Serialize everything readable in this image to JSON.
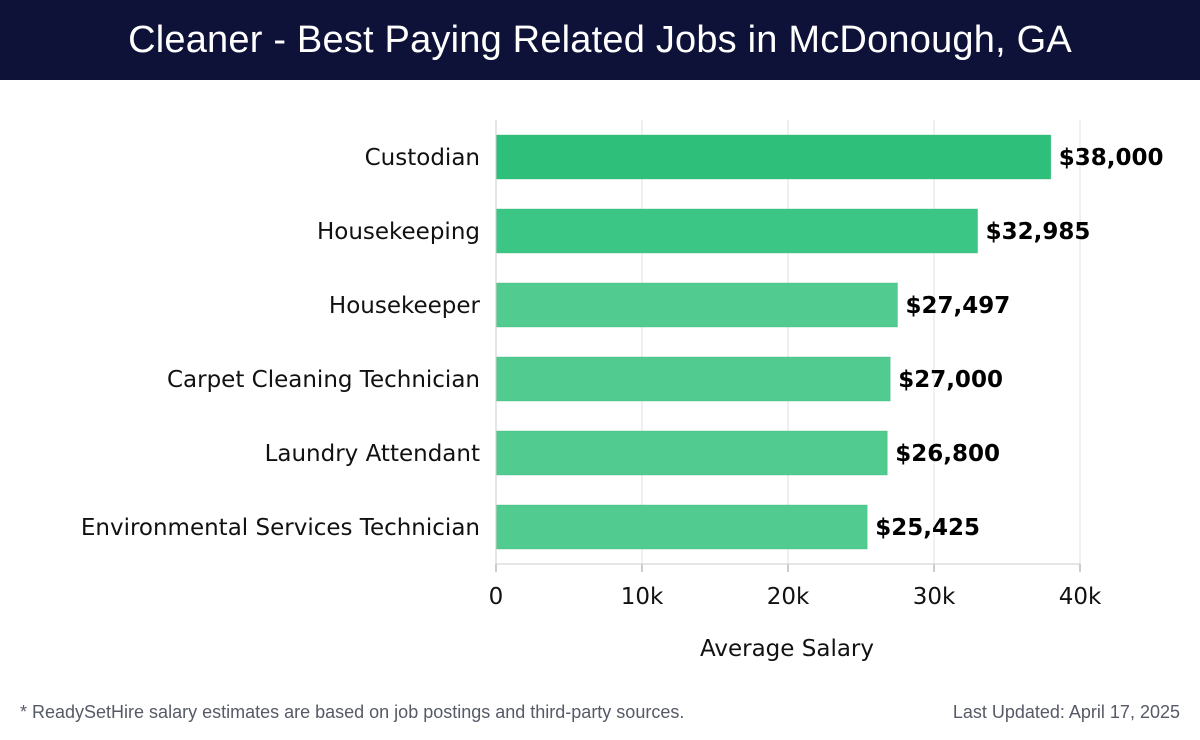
{
  "header": {
    "title": "Cleaner - Best Paying Related Jobs in McDonough, GA"
  },
  "chart_data": {
    "type": "bar",
    "orientation": "horizontal",
    "title": "Cleaner - Best Paying Related Jobs in McDonough, GA",
    "xlabel": "Average Salary",
    "ylabel": "",
    "xlim": [
      0,
      40000
    ],
    "xticks": [
      0,
      10000,
      20000,
      30000,
      40000
    ],
    "xtick_labels": [
      "0",
      "10k",
      "20k",
      "30k",
      "40k"
    ],
    "categories": [
      "Custodian",
      "Housekeeping",
      "Housekeeper",
      "Carpet Cleaning Technician",
      "Laundry Attendant",
      "Environmental Services Technician"
    ],
    "values": [
      38000,
      32985,
      27497,
      27000,
      26800,
      25425
    ],
    "value_labels": [
      "$38,000",
      "$32,985",
      "$27,497",
      "$27,000",
      "$26,800",
      "$25,425"
    ],
    "bar_colors": [
      "#2ebf7a",
      "#3cc686",
      "#52cb91",
      "#52cb91",
      "#52cb91",
      "#52cb91"
    ],
    "grid": true
  },
  "footer": {
    "note": "* ReadySetHire salary estimates are based on job postings and third-party sources.",
    "updated": "Last Updated: April 17, 2025"
  }
}
